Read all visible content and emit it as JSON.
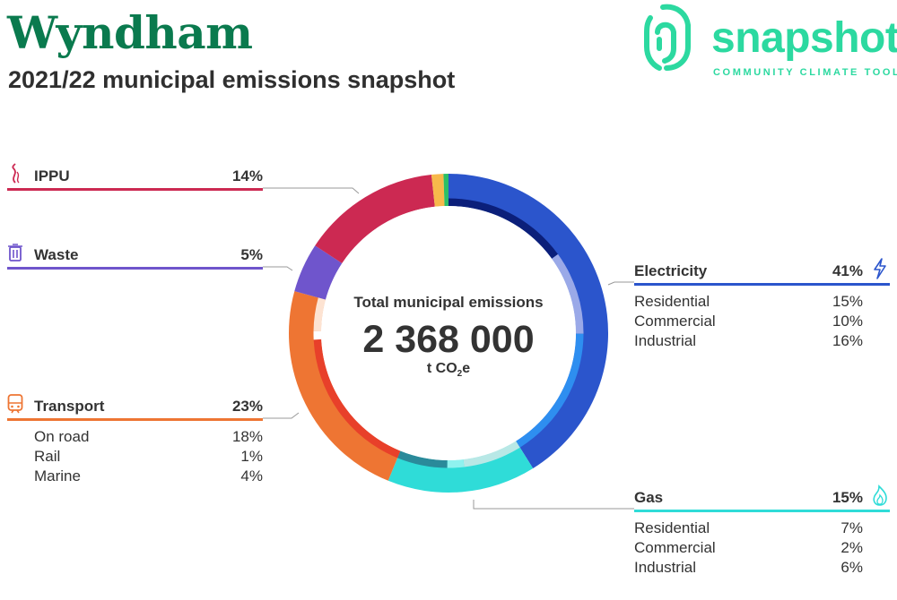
{
  "header": {
    "title": "Wyndham",
    "subtitle": "2021/22 municipal emissions snapshot"
  },
  "logo": {
    "word": "snapshot",
    "tagline": "COMMUNITY CLIMATE TOOL",
    "color": "#2cd9a0",
    "icon": "fingerprint-icon"
  },
  "center": {
    "label": "Total municipal emissions",
    "total": "2 368 000",
    "unit_prefix": "t CO",
    "unit_sub": "2",
    "unit_suffix": "e"
  },
  "categories": {
    "ippu": {
      "name": "IPPU",
      "pct": "14%",
      "icon": "smokestack-icon",
      "color": "#cc2952"
    },
    "waste": {
      "name": "Waste",
      "pct": "5%",
      "icon": "trash-bin-icon",
      "color": "#6f55cc"
    },
    "transport": {
      "name": "Transport",
      "pct": "23%",
      "icon": "train-icon",
      "color": "#ee7533",
      "subs": [
        {
          "name": "On road",
          "pct": "18%"
        },
        {
          "name": "Rail",
          "pct": "1%"
        },
        {
          "name": "Marine",
          "pct": "4%"
        }
      ]
    },
    "electricity": {
      "name": "Electricity",
      "pct": "41%",
      "icon": "lightning-icon",
      "color": "#2b55cc",
      "subs": [
        {
          "name": "Residential",
          "pct": "15%"
        },
        {
          "name": "Commercial",
          "pct": "10%"
        },
        {
          "name": "Industrial",
          "pct": "16%"
        }
      ]
    },
    "gas": {
      "name": "Gas",
      "pct": "15%",
      "icon": "flame-icon",
      "color": "#2fdcd8",
      "subs": [
        {
          "name": "Residential",
          "pct": "7%"
        },
        {
          "name": "Commercial",
          "pct": "2%"
        },
        {
          "name": "Industrial",
          "pct": "6%"
        }
      ]
    }
  },
  "chart_data": {
    "type": "pie",
    "style": "donut",
    "series": [
      {
        "name": "Electricity",
        "value": 41,
        "color": "#2b55cc",
        "subs": [
          {
            "name": "Residential",
            "value": 15,
            "color": "#0b1f7a"
          },
          {
            "name": "Commercial",
            "value": 10,
            "color": "#9aa9e8"
          },
          {
            "name": "Industrial",
            "value": 16,
            "color": "#2e8ef0"
          }
        ]
      },
      {
        "name": "Gas",
        "value": 15,
        "color": "#2fdcd8",
        "subs": [
          {
            "name": "Residential",
            "value": 7,
            "color": "#b8e8e6"
          },
          {
            "name": "Commercial",
            "value": 2,
            "color": "#8ff2ef"
          },
          {
            "name": "Industrial",
            "value": 6,
            "color": "#2a8a9a"
          }
        ]
      },
      {
        "name": "Transport",
        "value": 23,
        "color": "#ee7533",
        "subs": [
          {
            "name": "On road",
            "value": 18,
            "color": "#e8402a"
          },
          {
            "name": "Rail",
            "value": 1,
            "color": "#ffffff"
          },
          {
            "name": "Marine",
            "value": 4,
            "color": "#fde3d2"
          }
        ]
      },
      {
        "name": "Waste",
        "value": 5,
        "color": "#6f55cc"
      },
      {
        "name": "IPPU",
        "value": 14,
        "color": "#cc2952"
      },
      {
        "name": "",
        "value": 1.2,
        "color": "#f7b84b"
      },
      {
        "name": "",
        "value": 0.5,
        "color": "#2cbf66"
      }
    ],
    "legend": "side-labels",
    "unit": "%"
  }
}
